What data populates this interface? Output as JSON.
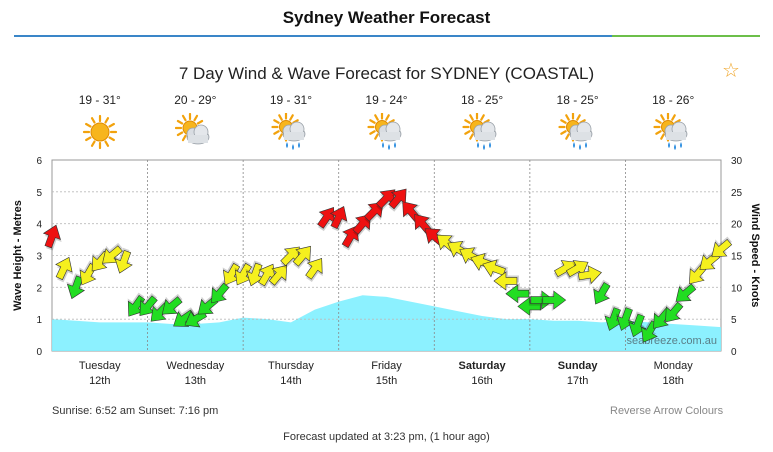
{
  "header": {
    "title": "Sydney Weather Forecast"
  },
  "chart_title": "7 Day Wind & Wave Forecast for SYDNEY (COASTAL)",
  "forecast_days": [
    {
      "temp": "19 - 31°",
      "icon": "sunny-icon"
    },
    {
      "temp": "20 - 29°",
      "icon": "partly-cloudy-icon"
    },
    {
      "temp": "19 - 31°",
      "icon": "sun-cloud-rain-icon"
    },
    {
      "temp": "19 - 24°",
      "icon": "sun-cloud-rain-icon"
    },
    {
      "temp": "18 - 25°",
      "icon": "sun-cloud-rain-icon"
    },
    {
      "temp": "18 - 25°",
      "icon": "sun-cloud-rain-icon"
    },
    {
      "temp": "18 - 26°",
      "icon": "sun-cloud-rain-icon"
    }
  ],
  "watermark": "seabreeze.com.au",
  "sunrise_sunset": "Sunrise: 6:52 am  Sunset: 7:16 pm",
  "reverse_arrow_colours": "Reverse Arrow Colours",
  "forecast_updated": "Forecast updated at 3:23 pm, (1 hour ago)",
  "colors": {
    "wave_fill": "#80f0ff",
    "light_wind": "#22dd22",
    "moderate_wind": "#f5f01e",
    "strong_wind": "#ee1111",
    "accent": "#3a86c8"
  },
  "chart_data": {
    "type": "area",
    "ylabel": "Wave Height - Metres",
    "y2label": "Wind Speed - Knots",
    "ylim": [
      0,
      6
    ],
    "y2lim": [
      0,
      30
    ],
    "yticks": [
      "0",
      "1",
      "2",
      "3",
      "4",
      "5",
      "6"
    ],
    "y2ticks": [
      "0",
      "5",
      "10",
      "15",
      "20",
      "25",
      "30"
    ],
    "grid": true,
    "days": [
      {
        "name": "Tuesday",
        "date": "12th",
        "bold": false
      },
      {
        "name": "Wednesday",
        "date": "13th",
        "bold": false
      },
      {
        "name": "Thursday",
        "date": "14th",
        "bold": false
      },
      {
        "name": "Friday",
        "date": "15th",
        "bold": false
      },
      {
        "name": "Saturday",
        "date": "16th",
        "bold": true
      },
      {
        "name": "Sunday",
        "date": "17th",
        "bold": true
      },
      {
        "name": "Monday",
        "date": "18th",
        "bold": false
      }
    ],
    "wave_height": {
      "hours": [
        0,
        6,
        12,
        18,
        24,
        30,
        36,
        42,
        48,
        54,
        60,
        66,
        72,
        78,
        84,
        90,
        96,
        102,
        108,
        114,
        120,
        126,
        132,
        138,
        144,
        150,
        156,
        162,
        168
      ],
      "values": [
        1.0,
        0.95,
        0.9,
        0.9,
        0.9,
        0.85,
        0.85,
        0.9,
        1.05,
        1.0,
        0.9,
        1.3,
        1.55,
        1.75,
        1.7,
        1.55,
        1.4,
        1.25,
        1.1,
        1.0,
        1.0,
        0.95,
        0.95,
        0.9,
        0.95,
        0.9,
        0.85,
        0.8,
        0.75
      ]
    },
    "wind_speed": {
      "hours": [
        0,
        3,
        6,
        9,
        12,
        15,
        18,
        21,
        24,
        27,
        30,
        33,
        36,
        39,
        42,
        45,
        48,
        51,
        54,
        57,
        60,
        63,
        66,
        69,
        72,
        75,
        78,
        81,
        84,
        87,
        90,
        93,
        96,
        99,
        102,
        105,
        108,
        111,
        114,
        117,
        120,
        123,
        126,
        129,
        132,
        135,
        138,
        141,
        144,
        147,
        150,
        153,
        156,
        159,
        162,
        165,
        168
      ],
      "knots": [
        18,
        13,
        10,
        12,
        14,
        15,
        14,
        7,
        7,
        6,
        7,
        5,
        5,
        7,
        9,
        12,
        12,
        12,
        12,
        12,
        15,
        15,
        13,
        21,
        21,
        18,
        20,
        22,
        24,
        24,
        22,
        20,
        18,
        17,
        16,
        15,
        14,
        13,
        11,
        9,
        7,
        8,
        8,
        13,
        13,
        12,
        9,
        5,
        5,
        4,
        3,
        5,
        6,
        9,
        12,
        14,
        16
      ],
      "direction_deg": [
        20,
        25,
        200,
        210,
        220,
        230,
        200,
        215,
        220,
        225,
        230,
        235,
        240,
        230,
        220,
        210,
        210,
        200,
        30,
        40,
        45,
        40,
        35,
        35,
        25,
        30,
        40,
        45,
        45,
        40,
        320,
        320,
        310,
        310,
        300,
        300,
        290,
        290,
        270,
        270,
        270,
        90,
        90,
        60,
        60,
        80,
        210,
        200,
        200,
        200,
        210,
        220,
        220,
        230,
        220,
        230,
        230
      ]
    }
  }
}
